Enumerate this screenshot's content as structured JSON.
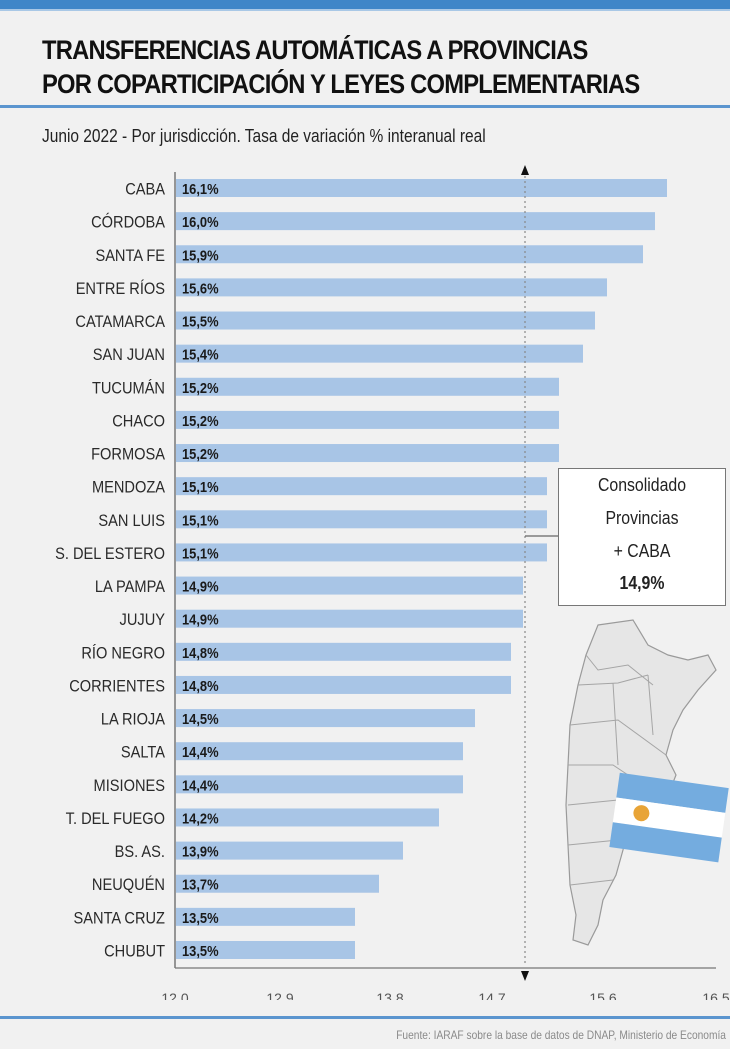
{
  "header": {
    "title_line1": "TRANSFERENCIAS AUTOMÁTICAS A PROVINCIAS",
    "title_line2": "POR COPARTICIPACIÓN Y LEYES COMPLEMENTARIAS",
    "subtitle": "Junio 2022 - Por jurisdicción. Tasa de variación % interanual real"
  },
  "colors": {
    "accent": "#3f86c8",
    "bar": "#a8c5e6",
    "flag_blue": "#74acdf",
    "flag_sun": "#e8a437"
  },
  "callout": {
    "line1": "Consolidado",
    "line2": "Provincias",
    "line3": "+ CABA",
    "value_label": "14,9%",
    "value": 14.9
  },
  "footer": {
    "source": "Fuente: IARAF sobre la base de datos de DNAP, Ministerio de Economía"
  },
  "chart_data": {
    "type": "bar",
    "orientation": "horizontal",
    "title": "TRANSFERENCIAS AUTOMÁTICAS A PROVINCIAS POR COPARTICIPACIÓN Y LEYES COMPLEMENTARIAS",
    "subtitle": "Junio 2022 - Por jurisdicción. Tasa de variación % interanual real",
    "xlabel": "",
    "ylabel": "",
    "xlim": [
      12.0,
      16.5
    ],
    "x_ticks": [
      "12.0",
      "12.9",
      "13.8",
      "14.7",
      "15.6",
      "16.5"
    ],
    "x_tick_values": [
      12.0,
      12.9,
      13.8,
      14.7,
      15.6,
      16.5
    ],
    "reference_line": {
      "value": 14.9,
      "label": "Consolidado Provincias + CABA 14,9%"
    },
    "grid": false,
    "categories": [
      "CABA",
      "CÓRDOBA",
      "SANTA FE",
      "ENTRE RÍOS",
      "CATAMARCA",
      "SAN JUAN",
      "TUCUMÁN",
      "CHACO",
      "FORMOSA",
      "MENDOZA",
      "SAN LUIS",
      "S. DEL ESTERO",
      "LA PAMPA",
      "JUJUY",
      "RÍO NEGRO",
      "CORRIENTES",
      "LA RIOJA",
      "SALTA",
      "MISIONES",
      "T. DEL FUEGO",
      "BS. AS.",
      "NEUQUÉN",
      "SANTA CRUZ",
      "CHUBUT"
    ],
    "values": [
      16.1,
      16.0,
      15.9,
      15.6,
      15.5,
      15.4,
      15.2,
      15.2,
      15.2,
      15.1,
      15.1,
      15.1,
      14.9,
      14.9,
      14.8,
      14.8,
      14.5,
      14.4,
      14.4,
      14.2,
      13.9,
      13.7,
      13.5,
      13.5
    ],
    "value_labels": [
      "16,1%",
      "16,0%",
      "15,9%",
      "15,6%",
      "15,5%",
      "15,4%",
      "15,2%",
      "15,2%",
      "15,2%",
      "15,1%",
      "15,1%",
      "15,1%",
      "14,9%",
      "14,9%",
      "14,8%",
      "14,8%",
      "14,5%",
      "14,4%",
      "14,4%",
      "14,2%",
      "13,9%",
      "13,7%",
      "13,5%",
      "13,5%"
    ]
  }
}
